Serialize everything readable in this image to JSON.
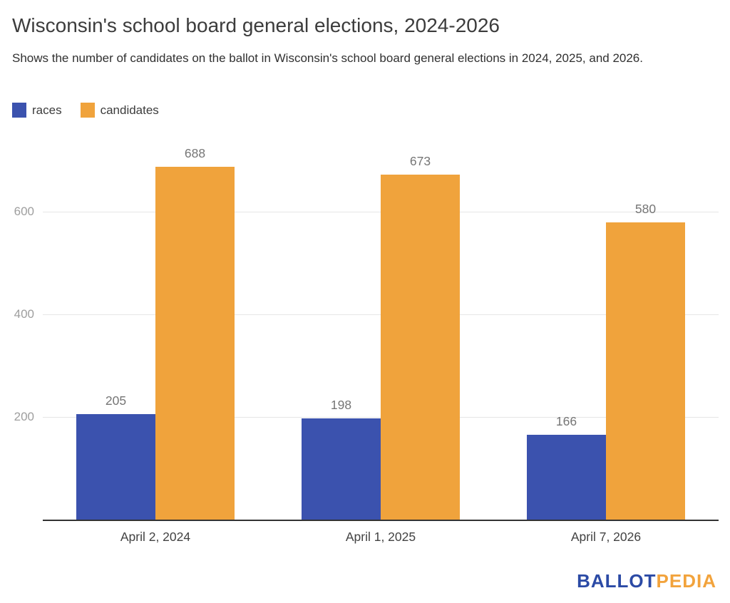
{
  "chart_data": {
    "type": "bar",
    "title": "Wisconsin's school board general elections, 2024-2026",
    "subtitle": "Shows the number of candidates on the ballot in Wisconsin's school board general elections in 2024, 2025, and 2026.",
    "categories": [
      "April 2, 2024",
      "April 1, 2025",
      "April 7, 2026"
    ],
    "series": [
      {
        "name": "races",
        "color": "#3b52ae",
        "values": [
          205,
          198,
          166
        ]
      },
      {
        "name": "candidates",
        "color": "#f0a33c",
        "values": [
          688,
          673,
          580
        ]
      }
    ],
    "xlabel": "",
    "ylabel": "",
    "ylim": [
      0,
      749
    ],
    "yticks": [
      200,
      400,
      600
    ],
    "grid": true,
    "legend_position": "top-left",
    "value_labels": true,
    "colors": {
      "gridline": "#e6e6e6",
      "axis_line": "#333333",
      "tick_label": "#9e9e9e",
      "value_label": "#757575",
      "category_label": "#424242"
    }
  },
  "logo": {
    "ballot": "BALLOT",
    "pedia": "PEDIA",
    "ballot_color": "#2b4aa5",
    "pedia_color": "#f2a33c"
  }
}
